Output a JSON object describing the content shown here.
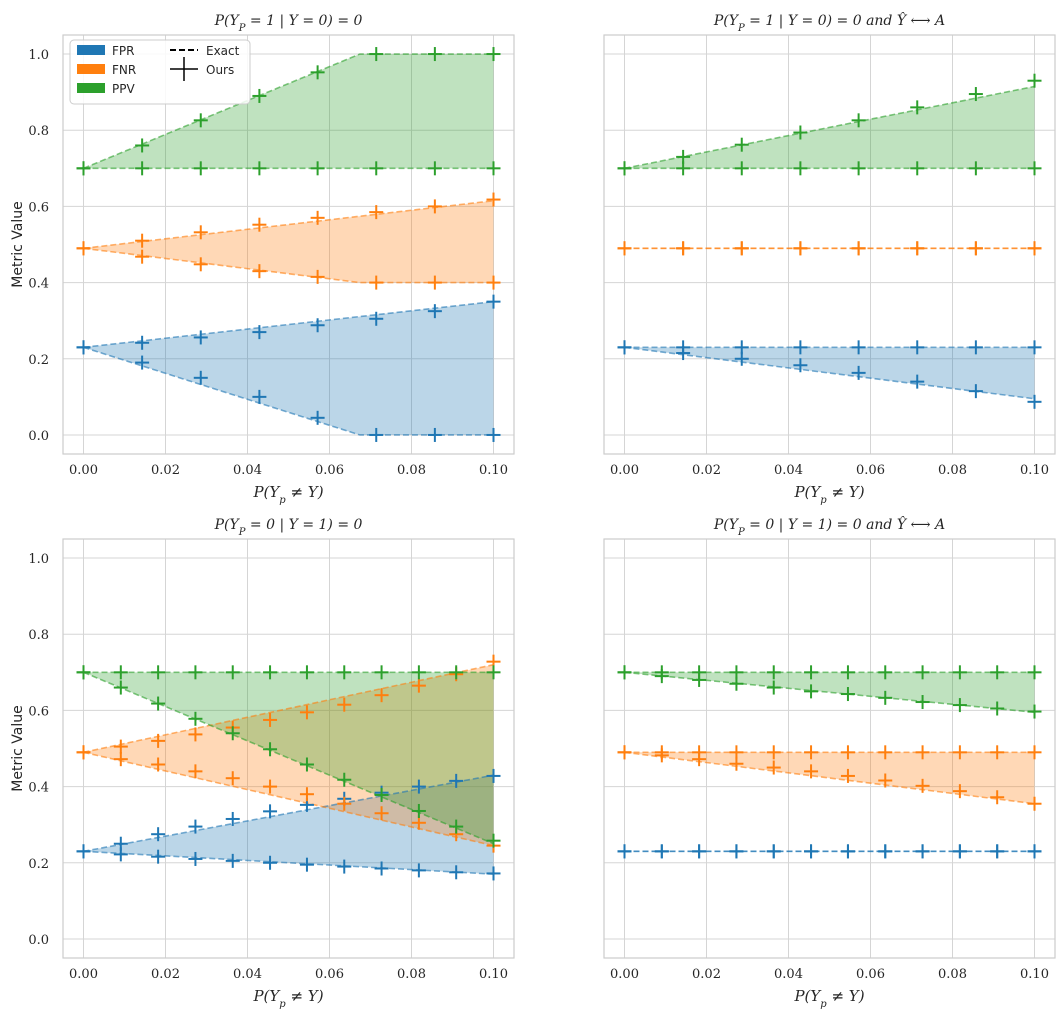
{
  "legend": {
    "items": [
      {
        "label": "FPR",
        "color": "#1f77b4"
      },
      {
        "label": "FNR",
        "color": "#ff7f0e"
      },
      {
        "label": "PPV",
        "color": "#2ca02c"
      }
    ],
    "exact_label": "Exact",
    "ours_label": "Ours"
  },
  "chart_data": [
    {
      "type": "area",
      "title": "P(Y_P = 1 | Y = 0) = 0",
      "xlabel": "P(Y_p ≠ Y)",
      "ylabel": "Metric Value",
      "xlim": [
        -0.005,
        0.105
      ],
      "ylim": [
        -0.05,
        1.05
      ],
      "xticks": [
        "0.00",
        "0.02",
        "0.04",
        "0.06",
        "0.08",
        "0.10"
      ],
      "yticks": [
        "0.0",
        "0.2",
        "0.4",
        "0.6",
        "0.8",
        "1.0"
      ],
      "show_legend": true,
      "show_yticklabels": true,
      "series": [
        {
          "name": "FPR",
          "exact_x": [
            0,
            0.1
          ],
          "upper_exact": [
            0.23,
            0.35
          ],
          "lower_exact_x": [
            0,
            0.0674,
            0.1
          ],
          "lower_exact": [
            0.23,
            0.0,
            0.0
          ],
          "markers_x": [
            0,
            0.0143,
            0.0286,
            0.0429,
            0.0571,
            0.0714,
            0.0857,
            0.1
          ],
          "markers_upper": [
            0.23,
            0.242,
            0.256,
            0.27,
            0.288,
            0.305,
            0.325,
            0.35
          ],
          "markers_lower": [
            0.23,
            0.19,
            0.15,
            0.1,
            0.045,
            0.0,
            0.0,
            0.0
          ]
        },
        {
          "name": "FNR",
          "exact_x": [
            0,
            0.1
          ],
          "upper_exact": [
            0.49,
            0.615
          ],
          "lower_exact_x": [
            0,
            0.0674,
            0.1
          ],
          "lower_exact": [
            0.49,
            0.4,
            0.4
          ],
          "markers_x": [
            0,
            0.0143,
            0.0286,
            0.0429,
            0.0571,
            0.0714,
            0.0857,
            0.1
          ],
          "markers_upper": [
            0.49,
            0.51,
            0.532,
            0.552,
            0.57,
            0.585,
            0.6,
            0.618
          ],
          "markers_lower": [
            0.49,
            0.468,
            0.448,
            0.43,
            0.415,
            0.4,
            0.4,
            0.4
          ]
        },
        {
          "name": "PPV",
          "exact_x": [
            0,
            0.0674,
            0.1
          ],
          "upper_exact": [
            0.7,
            1.0,
            1.0
          ],
          "lower_exact_x": [
            0,
            0.1
          ],
          "lower_exact": [
            0.7,
            0.7
          ],
          "markers_x": [
            0,
            0.0143,
            0.0286,
            0.0429,
            0.0571,
            0.0714,
            0.0857,
            0.1
          ],
          "markers_upper": [
            0.7,
            0.76,
            0.826,
            0.89,
            0.952,
            1.0,
            1.0,
            1.0
          ],
          "markers_lower": [
            0.7,
            0.7,
            0.7,
            0.7,
            0.7,
            0.7,
            0.7,
            0.7
          ]
        }
      ]
    },
    {
      "type": "area",
      "title": "P(Y_P = 1 | Y = 0) = 0 and Ŷ ⟷ A",
      "xlabel": "P(Y_p ≠ Y)",
      "ylabel": "",
      "xlim": [
        -0.005,
        0.105
      ],
      "ylim": [
        -0.05,
        1.05
      ],
      "xticks": [
        "0.00",
        "0.02",
        "0.04",
        "0.06",
        "0.08",
        "0.10"
      ],
      "yticks": [
        "0.0",
        "0.2",
        "0.4",
        "0.6",
        "0.8",
        "1.0"
      ],
      "show_legend": false,
      "show_yticklabels": false,
      "series": [
        {
          "name": "FPR",
          "exact_x": [
            0,
            0.1
          ],
          "upper_exact": [
            0.23,
            0.23
          ],
          "lower_exact_x": [
            0,
            0.1
          ],
          "lower_exact": [
            0.23,
            0.095
          ],
          "markers_x": [
            0,
            0.0143,
            0.0286,
            0.0429,
            0.0571,
            0.0714,
            0.0857,
            0.1
          ],
          "markers_upper": [
            0.23,
            0.23,
            0.23,
            0.23,
            0.23,
            0.23,
            0.23,
            0.23
          ],
          "markers_lower": [
            0.23,
            0.215,
            0.2,
            0.183,
            0.163,
            0.14,
            0.115,
            0.087
          ]
        },
        {
          "name": "FNR",
          "exact_x": [
            0,
            0.1
          ],
          "upper_exact": [
            0.49,
            0.49
          ],
          "lower_exact_x": [
            0,
            0.1
          ],
          "lower_exact": [
            0.49,
            0.49
          ],
          "markers_x": [
            0,
            0.0143,
            0.0286,
            0.0429,
            0.0571,
            0.0714,
            0.0857,
            0.1
          ],
          "markers_upper": [
            0.49,
            0.49,
            0.49,
            0.49,
            0.49,
            0.49,
            0.49,
            0.49
          ],
          "markers_lower": [
            0.49,
            0.49,
            0.49,
            0.49,
            0.49,
            0.49,
            0.49,
            0.49
          ]
        },
        {
          "name": "PPV",
          "exact_x": [
            0,
            0.1
          ],
          "upper_exact": [
            0.7,
            0.915
          ],
          "lower_exact_x": [
            0,
            0.1
          ],
          "lower_exact": [
            0.7,
            0.7
          ],
          "markers_x": [
            0,
            0.0143,
            0.0286,
            0.0429,
            0.0571,
            0.0714,
            0.0857,
            0.1
          ],
          "markers_upper": [
            0.7,
            0.73,
            0.762,
            0.794,
            0.826,
            0.86,
            0.895,
            0.93
          ],
          "markers_lower": [
            0.7,
            0.7,
            0.7,
            0.7,
            0.7,
            0.7,
            0.7,
            0.7
          ]
        }
      ]
    },
    {
      "type": "area",
      "title": "P(Y_P = 0 | Y = 1) = 0",
      "xlabel": "P(Y_p ≠ Y)",
      "ylabel": "Metric Value",
      "xlim": [
        -0.005,
        0.105
      ],
      "ylim": [
        -0.05,
        1.05
      ],
      "xticks": [
        "0.00",
        "0.02",
        "0.04",
        "0.06",
        "0.08",
        "0.10"
      ],
      "yticks": [
        "0.0",
        "0.2",
        "0.4",
        "0.6",
        "0.8",
        "1.0"
      ],
      "show_legend": false,
      "show_yticklabels": true,
      "series": [
        {
          "name": "FPR",
          "exact_x": [
            0,
            0.1
          ],
          "upper_exact": [
            0.23,
            0.43
          ],
          "lower_exact_x": [
            0,
            0.1
          ],
          "lower_exact": [
            0.23,
            0.17
          ],
          "markers_x": [
            0,
            0.0091,
            0.0182,
            0.0273,
            0.0364,
            0.0455,
            0.0545,
            0.0636,
            0.0727,
            0.0818,
            0.0909,
            0.1
          ],
          "markers_upper": [
            0.23,
            0.25,
            0.275,
            0.295,
            0.315,
            0.335,
            0.352,
            0.368,
            0.384,
            0.4,
            0.415,
            0.428
          ],
          "markers_lower": [
            0.23,
            0.222,
            0.216,
            0.21,
            0.205,
            0.2,
            0.195,
            0.19,
            0.185,
            0.18,
            0.175,
            0.172
          ]
        },
        {
          "name": "FNR",
          "exact_x": [
            0,
            0.1
          ],
          "upper_exact": [
            0.49,
            0.72
          ],
          "lower_exact_x": [
            0,
            0.1
          ],
          "lower_exact": [
            0.49,
            0.245
          ],
          "markers_x": [
            0,
            0.0091,
            0.0182,
            0.0273,
            0.0364,
            0.0455,
            0.0545,
            0.0636,
            0.0727,
            0.0818,
            0.0909,
            0.1
          ],
          "markers_upper": [
            0.49,
            0.505,
            0.52,
            0.537,
            0.555,
            0.575,
            0.595,
            0.615,
            0.64,
            0.665,
            0.695,
            0.728
          ],
          "markers_lower": [
            0.49,
            0.472,
            0.458,
            0.44,
            0.422,
            0.4,
            0.38,
            0.355,
            0.33,
            0.305,
            0.275,
            0.245
          ]
        },
        {
          "name": "PPV",
          "exact_x": [
            0,
            0.1
          ],
          "upper_exact": [
            0.7,
            0.7
          ],
          "lower_exact_x": [
            0,
            0.1
          ],
          "lower_exact": [
            0.7,
            0.25
          ],
          "markers_x": [
            0,
            0.0091,
            0.0182,
            0.0273,
            0.0364,
            0.0455,
            0.0545,
            0.0636,
            0.0727,
            0.0818,
            0.0909,
            0.1
          ],
          "markers_upper": [
            0.7,
            0.7,
            0.7,
            0.7,
            0.7,
            0.7,
            0.7,
            0.7,
            0.7,
            0.7,
            0.7,
            0.7
          ],
          "markers_lower": [
            0.7,
            0.66,
            0.618,
            0.578,
            0.54,
            0.498,
            0.458,
            0.418,
            0.378,
            0.336,
            0.295,
            0.258
          ]
        }
      ]
    },
    {
      "type": "area",
      "title": "P(Y_P = 0 | Y = 1) = 0 and Ŷ ⟷ A",
      "xlabel": "P(Y_p ≠ Y)",
      "ylabel": "",
      "xlim": [
        -0.005,
        0.105
      ],
      "ylim": [
        -0.05,
        1.05
      ],
      "xticks": [
        "0.00",
        "0.02",
        "0.04",
        "0.06",
        "0.08",
        "0.10"
      ],
      "yticks": [
        "0.0",
        "0.2",
        "0.4",
        "0.6",
        "0.8",
        "1.0"
      ],
      "show_legend": false,
      "show_yticklabels": false,
      "series": [
        {
          "name": "FPR",
          "exact_x": [
            0,
            0.1
          ],
          "upper_exact": [
            0.23,
            0.23
          ],
          "lower_exact_x": [
            0,
            0.1
          ],
          "lower_exact": [
            0.23,
            0.23
          ],
          "markers_x": [
            0,
            0.0091,
            0.0182,
            0.0273,
            0.0364,
            0.0455,
            0.0545,
            0.0636,
            0.0727,
            0.0818,
            0.0909,
            0.1
          ],
          "markers_upper": [
            0.23,
            0.23,
            0.23,
            0.23,
            0.23,
            0.23,
            0.23,
            0.23,
            0.23,
            0.23,
            0.23,
            0.23
          ],
          "markers_lower": [
            0.23,
            0.23,
            0.23,
            0.23,
            0.23,
            0.23,
            0.23,
            0.23,
            0.23,
            0.23,
            0.23,
            0.23
          ]
        },
        {
          "name": "FNR",
          "exact_x": [
            0,
            0.1
          ],
          "upper_exact": [
            0.49,
            0.49
          ],
          "lower_exact_x": [
            0,
            0.1
          ],
          "lower_exact": [
            0.49,
            0.355
          ],
          "markers_x": [
            0,
            0.0091,
            0.0182,
            0.0273,
            0.0364,
            0.0455,
            0.0545,
            0.0636,
            0.0727,
            0.0818,
            0.0909,
            0.1
          ],
          "markers_upper": [
            0.49,
            0.49,
            0.49,
            0.49,
            0.49,
            0.49,
            0.49,
            0.49,
            0.49,
            0.49,
            0.49,
            0.49
          ],
          "markers_lower": [
            0.49,
            0.482,
            0.472,
            0.46,
            0.45,
            0.44,
            0.428,
            0.416,
            0.402,
            0.388,
            0.372,
            0.355
          ]
        },
        {
          "name": "PPV",
          "exact_x": [
            0,
            0.1
          ],
          "upper_exact": [
            0.7,
            0.7
          ],
          "lower_exact_x": [
            0,
            0.1
          ],
          "lower_exact": [
            0.7,
            0.595
          ],
          "markers_x": [
            0,
            0.0091,
            0.0182,
            0.0273,
            0.0364,
            0.0455,
            0.0545,
            0.0636,
            0.0727,
            0.0818,
            0.0909,
            0.1
          ],
          "markers_upper": [
            0.7,
            0.7,
            0.7,
            0.7,
            0.7,
            0.7,
            0.7,
            0.7,
            0.7,
            0.7,
            0.7,
            0.7
          ],
          "markers_lower": [
            0.7,
            0.69,
            0.68,
            0.67,
            0.66,
            0.65,
            0.643,
            0.633,
            0.622,
            0.614,
            0.605,
            0.597
          ]
        }
      ]
    }
  ]
}
